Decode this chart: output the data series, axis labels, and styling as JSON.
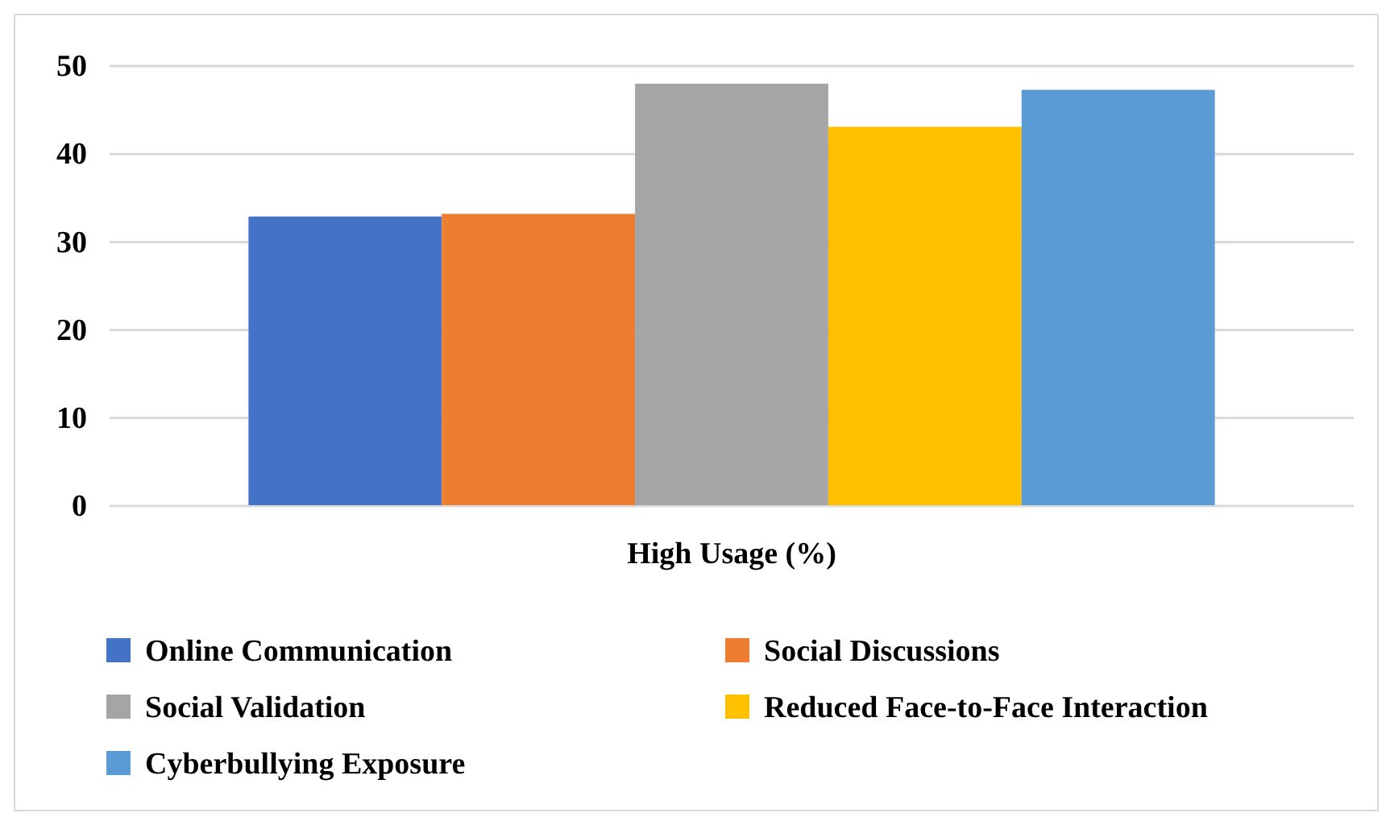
{
  "chart_data": {
    "type": "bar",
    "categories": [
      "High Usage (%)"
    ],
    "series": [
      {
        "name": "Online Communication",
        "color": "#4472c4",
        "values": [
          32.9
        ]
      },
      {
        "name": "Social Discussions",
        "color": "#ed7d31",
        "values": [
          33.2
        ]
      },
      {
        "name": "Social Validation",
        "color": "#a5a5a5",
        "values": [
          48.0
        ]
      },
      {
        "name": "Reduced Face-to-Face Interaction",
        "color": "#ffc000",
        "values": [
          43.1
        ]
      },
      {
        "name": "Cyberbullying Exposure",
        "color": "#5b9bd5",
        "values": [
          47.3
        ]
      }
    ],
    "ylim": [
      0,
      50
    ],
    "yticks": [
      0,
      10,
      20,
      30,
      40,
      50
    ],
    "grid": "y",
    "legend": "bottom"
  }
}
